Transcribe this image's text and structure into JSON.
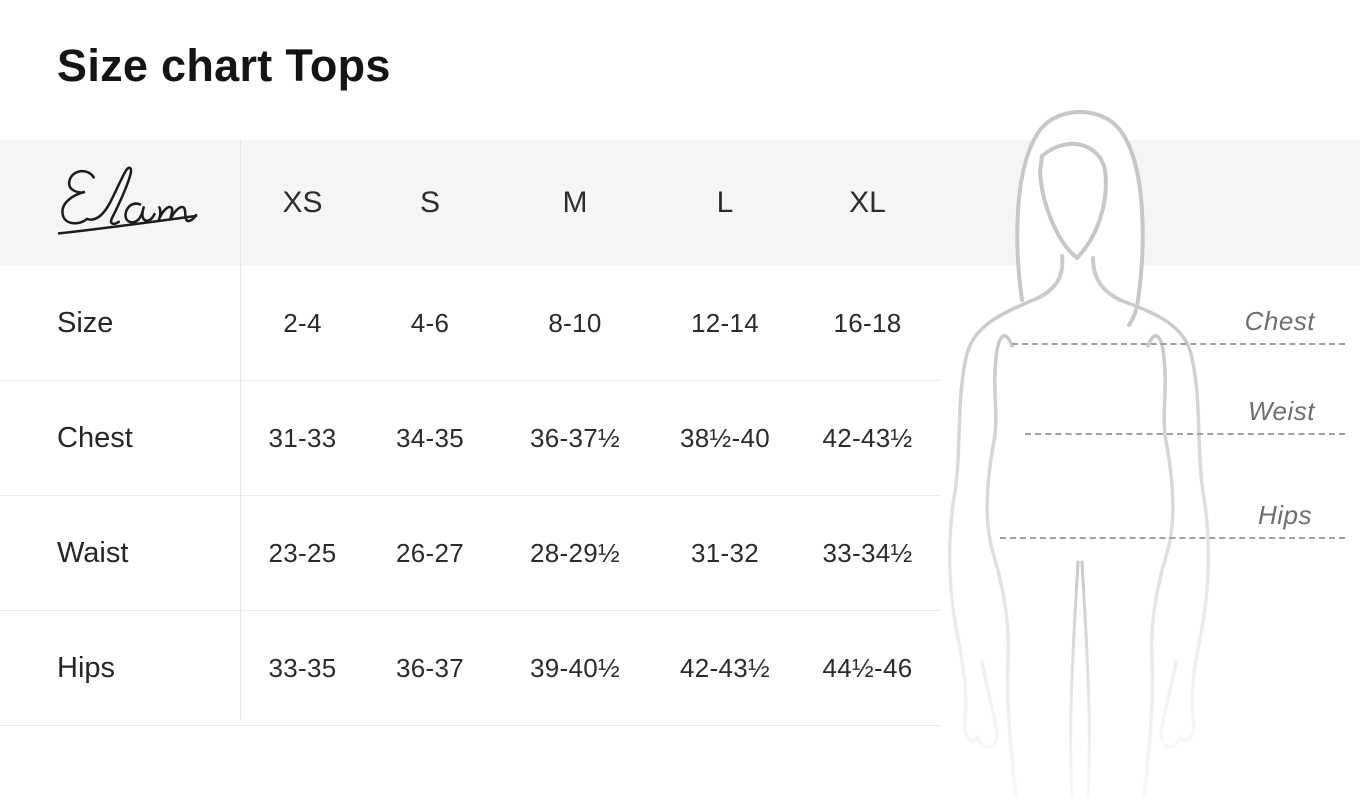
{
  "title": "Size chart Tops",
  "brand": {
    "name": "Elan"
  },
  "table": {
    "columns": [
      "XS",
      "S",
      "M",
      "L",
      "XL"
    ],
    "rows": [
      {
        "label": "Size",
        "values": [
          "2-4",
          "4-6",
          "8-10",
          "12-14",
          "16-18"
        ]
      },
      {
        "label": "Chest",
        "values": [
          "31-33",
          "34-35",
          "36-37½",
          "38½-40",
          "42-43½"
        ]
      },
      {
        "label": "Waist",
        "values": [
          "23-25",
          "26-27",
          "28-29½",
          "31-32",
          "33-34½"
        ]
      },
      {
        "label": "Hips",
        "values": [
          "33-35",
          "36-37",
          "39-40½",
          "42-43½",
          "44½-46"
        ]
      }
    ]
  },
  "figure": {
    "measurement_labels": {
      "chest": "Chest",
      "weist": "Weist",
      "hips": "Hips"
    }
  },
  "colors": {
    "header_band": "#f5f5f5",
    "row_border": "#ececec",
    "text_dark": "#141414",
    "silhouette_gray": "#c9c9c9",
    "dashed_line_gray": "#a0a0a0",
    "measure_label_gray": "#6e6e6e"
  }
}
